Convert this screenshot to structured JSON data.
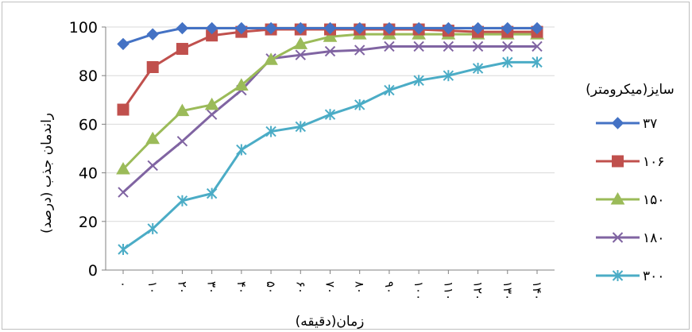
{
  "chart_data": {
    "type": "line",
    "title": "",
    "xlabel": "زمان(دقیقه)",
    "ylabel": "راندمان جذب (درصد)",
    "ylim": [
      0,
      100
    ],
    "yticks": [
      "0",
      "20",
      "40",
      "60",
      "80",
      "100"
    ],
    "grid": true,
    "legend_title": "سایز(میکرومتر)",
    "legend_position": "right",
    "categories": [
      "۰",
      "۱۰",
      "۲۰",
      "۳۰",
      "۴۰",
      "۵۰",
      "۶۰",
      "۷۰",
      "۸۰",
      "۹۰",
      "۱۰۰",
      "۱۱۰",
      "۱۲۰",
      "۱۳۰",
      "۱۴۰"
    ],
    "series": [
      {
        "name": "۳۷",
        "color": "#4472C4",
        "marker": "diamond",
        "values": [
          93,
          97,
          99.5,
          99.5,
          99.5,
          99.5,
          99.5,
          99.5,
          99.5,
          99.5,
          99.5,
          99.5,
          99.5,
          99.5,
          99.5
        ]
      },
      {
        "name": "۱۰۶",
        "color": "#C0504D",
        "marker": "square",
        "values": [
          66,
          83.5,
          91,
          96.5,
          98,
          99,
          99,
          99,
          99,
          99,
          99,
          98.5,
          98,
          98,
          98
        ]
      },
      {
        "name": "۱۵۰",
        "color": "#9BBB59",
        "marker": "triangle",
        "values": [
          41.5,
          54,
          65.5,
          68,
          76,
          86.5,
          93,
          96,
          97,
          97,
          97,
          97,
          97,
          97,
          97
        ]
      },
      {
        "name": "۱۸۰",
        "color": "#8064A2",
        "marker": "x",
        "values": [
          32,
          43,
          53,
          64,
          74,
          87,
          88.5,
          90,
          90.5,
          92,
          92,
          92,
          92,
          92,
          92
        ]
      },
      {
        "name": "۳۰۰",
        "color": "#4BACC6",
        "marker": "star",
        "values": [
          8.5,
          17,
          28.5,
          31.5,
          49.5,
          57,
          59,
          64,
          68,
          74,
          78,
          80,
          83,
          85.5,
          85.5
        ]
      }
    ]
  }
}
